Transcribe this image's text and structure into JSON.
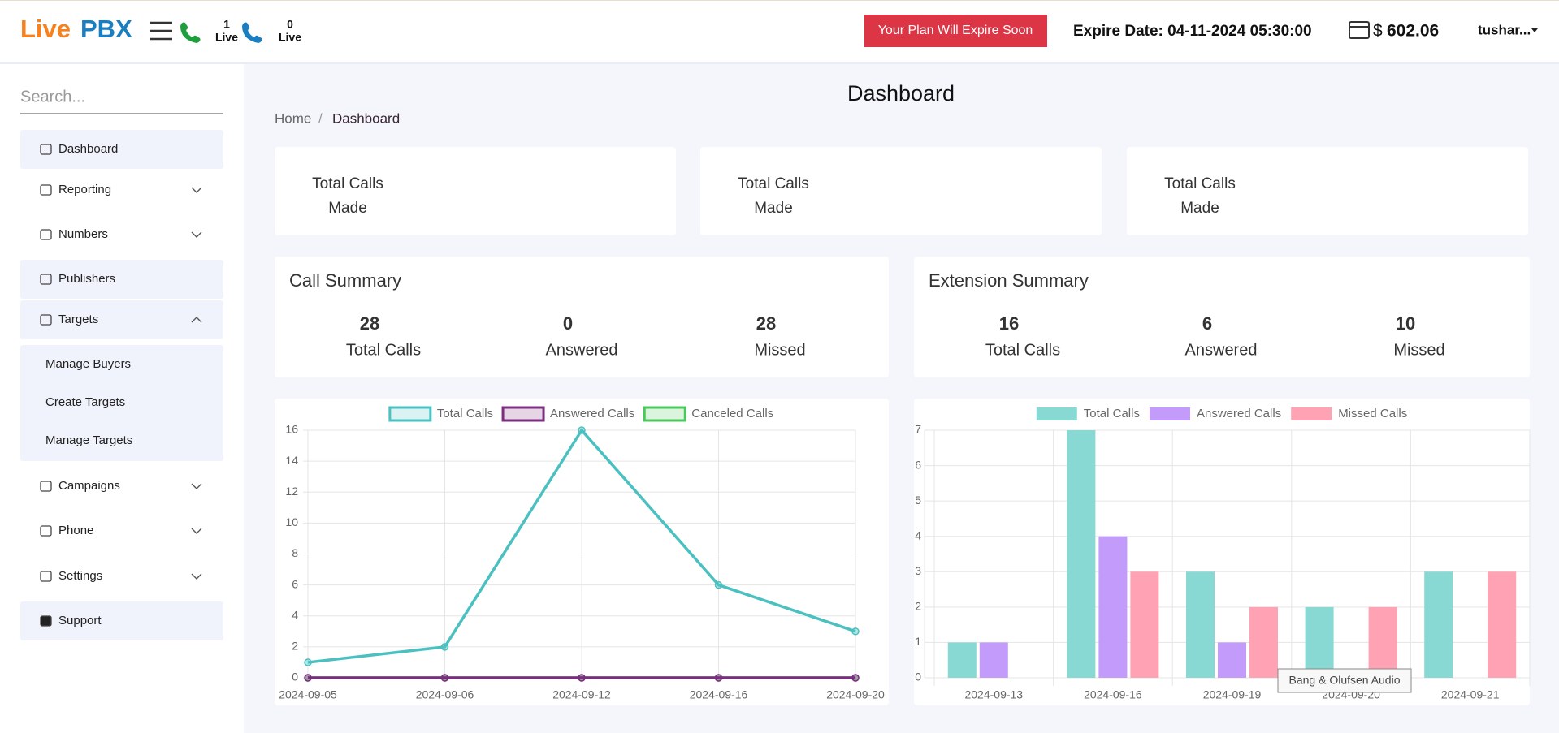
{
  "header": {
    "logo": [
      "Live",
      "PBX"
    ],
    "live": [
      {
        "count": 1,
        "label": "Live"
      },
      {
        "count": 0,
        "label": "Live"
      }
    ],
    "plan_alert": "Your Plan Will Expire Soon",
    "expire": "Expire Date: 04-11-2024 05:30:00",
    "currency": "$",
    "balance": 602.06,
    "user": "tushar..."
  },
  "sidebar": {
    "search": "Search...",
    "menu": [
      {
        "label": "Dashboard"
      },
      {
        "label": "Reporting"
      },
      {
        "label": "Numbers"
      },
      {
        "label": "Publishers"
      },
      {
        "label": "Targets",
        "children": [
          "Manage Buyers",
          "Create Targets",
          "Manage Targets"
        ]
      },
      {
        "label": "Campaigns"
      },
      {
        "label": "Phone"
      },
      {
        "label": "Settings"
      },
      {
        "label": "Support"
      }
    ]
  },
  "page": {
    "title": "Dashboard",
    "breadcrumb": [
      "Home",
      "Dashboard"
    ],
    "cards": [
      [
        "Total Calls",
        "Made"
      ],
      [
        "Total Calls",
        "Made"
      ],
      [
        "Total Calls",
        "Made"
      ]
    ],
    "summaries": [
      {
        "title": "Call Summary",
        "stats": [
          {
            "value": 28,
            "label": "Total Calls"
          },
          {
            "value": 0,
            "label": "Answered"
          },
          {
            "value": 28,
            "label": "Missed"
          }
        ]
      },
      {
        "title": "Extension Summary",
        "stats": [
          {
            "value": 16,
            "label": "Total Calls"
          },
          {
            "value": 6,
            "label": "Answered"
          },
          {
            "value": 10,
            "label": "Missed"
          }
        ]
      }
    ]
  },
  "chart_data": [
    {
      "type": "line",
      "categories": [
        "2024-09-05",
        "2024-09-06",
        "2024-09-12",
        "2024-09-16",
        "2024-09-20"
      ],
      "series": [
        {
          "name": "Total Calls",
          "color": "#4bc0c0",
          "values": [
            1,
            2,
            16,
            6,
            3
          ]
        },
        {
          "name": "Answered Calls",
          "color": "#7b2d7f",
          "values": [
            0,
            0,
            0,
            0,
            0
          ]
        },
        {
          "name": "Canceled Calls",
          "color": "#4cc75c",
          "values": [
            0,
            0,
            0,
            0,
            0
          ]
        }
      ],
      "ylim": [
        0,
        16
      ],
      "yticks": [
        0,
        2,
        4,
        6,
        8,
        10,
        12,
        14,
        16
      ],
      "grid": true,
      "legend": "top"
    },
    {
      "type": "bar",
      "categories": [
        "2024-09-13",
        "2024-09-16",
        "2024-09-19",
        "2024-09-20",
        "2024-09-21"
      ],
      "series": [
        {
          "name": "Total Calls",
          "color": "#88d8d4",
          "values": [
            1,
            7,
            3,
            2,
            3
          ]
        },
        {
          "name": "Answered Calls",
          "color": "#c39bfa",
          "values": [
            1,
            4,
            1,
            0,
            0
          ]
        },
        {
          "name": "Missed Calls",
          "color": "#ffa2b4",
          "values": [
            0,
            3,
            2,
            2,
            3
          ]
        }
      ],
      "ylim": [
        0,
        7
      ],
      "yticks": [
        0,
        1,
        2,
        3,
        4,
        5,
        6,
        7
      ],
      "grid": true,
      "legend": "top"
    }
  ],
  "tooltip": "Bang & Olufsen Audio"
}
